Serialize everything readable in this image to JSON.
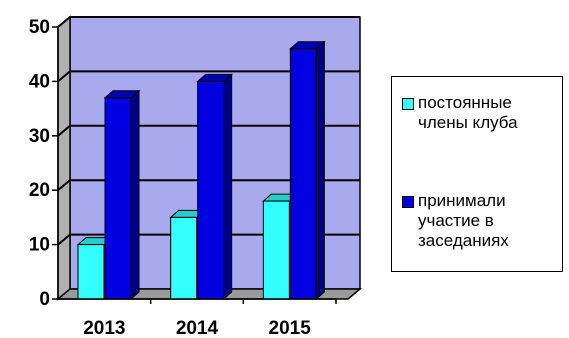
{
  "chart_data": {
    "type": "bar",
    "categories": [
      "2013",
      "2014",
      "2015"
    ],
    "series": [
      {
        "name": "постоянные члены клуба",
        "values": [
          10,
          15,
          18
        ],
        "color": "#33ffff"
      },
      {
        "name": "принимали участие в заседаниях",
        "values": [
          37,
          40,
          46
        ],
        "color": "#0000e0"
      }
    ],
    "ylim": [
      0,
      50
    ],
    "yticks": [
      0,
      10,
      20,
      30,
      40,
      50
    ],
    "grid": true,
    "legend_position": "right",
    "plot_background": "#a9a9ee",
    "style": "3d"
  }
}
